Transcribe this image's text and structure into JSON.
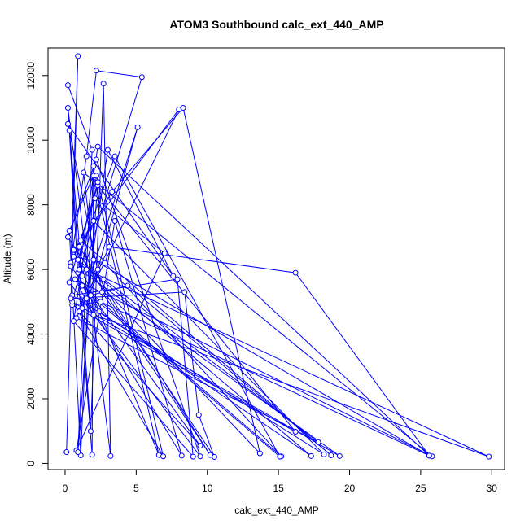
{
  "chart_data": {
    "type": "line",
    "title": "ATOM3 Southbound calc_ext_440_AMP",
    "xlabel": "calc_ext_440_AMP",
    "ylabel": "Altitude (m)",
    "xlim": [
      -1.2,
      30.9
    ],
    "ylim": [
      -190,
      12850
    ],
    "xticks": [
      0,
      5,
      10,
      15,
      20,
      25,
      30
    ],
    "yticks": [
      0,
      2000,
      4000,
      6000,
      8000,
      10000,
      12000
    ],
    "grid": false,
    "markers": "open-circle",
    "color": "#0000ff",
    "series": [
      {
        "points": [
          [
            0.1,
            350
          ],
          [
            0.9,
            12600
          ],
          [
            0.4,
            6200
          ],
          [
            1.5,
            9500
          ],
          [
            2.2,
            12150
          ],
          [
            5.4,
            11950
          ],
          [
            1.2,
            5800
          ],
          [
            0.3,
            10300
          ],
          [
            1.8,
            1000
          ],
          [
            2.7,
            11750
          ],
          [
            3.2,
            230
          ],
          [
            0.2,
            11000
          ],
          [
            0.9,
            5900
          ],
          [
            1.9,
            270
          ],
          [
            2.0,
            9200
          ],
          [
            1.1,
            250
          ],
          [
            0.3,
            7200
          ],
          [
            2.0,
            8900
          ],
          [
            6.6,
            260
          ],
          [
            0.6,
            6600
          ],
          [
            8.0,
            10950
          ],
          [
            1.2,
            4800
          ],
          [
            2.3,
            6000
          ],
          [
            5.1,
            10400
          ],
          [
            1.0,
            4700
          ],
          [
            9.5,
            550
          ],
          [
            0.4,
            6100
          ],
          [
            2.1,
            8200
          ],
          [
            7.0,
            6500
          ],
          [
            0.8,
            400
          ],
          [
            3.5,
            7500
          ],
          [
            8.2,
            240
          ],
          [
            1.5,
            5100
          ],
          [
            3.0,
            9700
          ],
          [
            7.6,
            5800
          ],
          [
            0.2,
            10500
          ],
          [
            2.6,
            5300
          ],
          [
            10.2,
            260
          ],
          [
            1.0,
            6700
          ],
          [
            3.3,
            8400
          ],
          [
            8.3,
            11000
          ],
          [
            13.7,
            310
          ],
          [
            0.6,
            6400
          ],
          [
            2.8,
            6200
          ],
          [
            15.2,
            220
          ],
          [
            1.2,
            5500
          ],
          [
            2.4,
            4700
          ],
          [
            17.3,
            230
          ],
          [
            0.9,
            6300
          ],
          [
            3.5,
            9500
          ],
          [
            15.1,
            210
          ],
          [
            1.8,
            5200
          ],
          [
            4.4,
            5500
          ],
          [
            18.7,
            250
          ],
          [
            1.1,
            6900
          ],
          [
            2.3,
            8600
          ],
          [
            16.2,
            980
          ],
          [
            0.5,
            4900
          ],
          [
            2.5,
            5000
          ],
          [
            25.6,
            240
          ],
          [
            2.0,
            6300
          ],
          [
            1.3,
            9000
          ],
          [
            25.8,
            220
          ],
          [
            0.7,
            5700
          ],
          [
            2.0,
            4600
          ],
          [
            29.8,
            210
          ],
          [
            1.5,
            6000
          ],
          [
            2.7,
            5700
          ],
          [
            17.8,
            660
          ],
          [
            0.8,
            4500
          ],
          [
            3.1,
            6700
          ],
          [
            16.2,
            5900
          ],
          [
            25.6,
            240
          ],
          [
            2.3,
            9800
          ],
          [
            1.0,
            6000
          ],
          [
            19.3,
            230
          ],
          [
            0.5,
            5000
          ],
          [
            2.0,
            7500
          ],
          [
            18.2,
            280
          ],
          [
            0.5,
            5200
          ],
          [
            7.9,
            5700
          ],
          [
            9.0,
            210
          ],
          [
            0.6,
            4400
          ],
          [
            2.2,
            8900
          ],
          [
            6.9,
            220
          ],
          [
            0.4,
            5100
          ],
          [
            8.4,
            5300
          ],
          [
            9.4,
            1500
          ],
          [
            10.5,
            200
          ],
          [
            0.2,
            7000
          ],
          [
            2.2,
            9400
          ],
          [
            9.5,
            220
          ],
          [
            0.3,
            5600
          ],
          [
            2.3,
            8700
          ],
          [
            0.9,
            350
          ],
          [
            1.9,
            9700
          ],
          [
            0.2,
            11700
          ]
        ]
      }
    ]
  }
}
